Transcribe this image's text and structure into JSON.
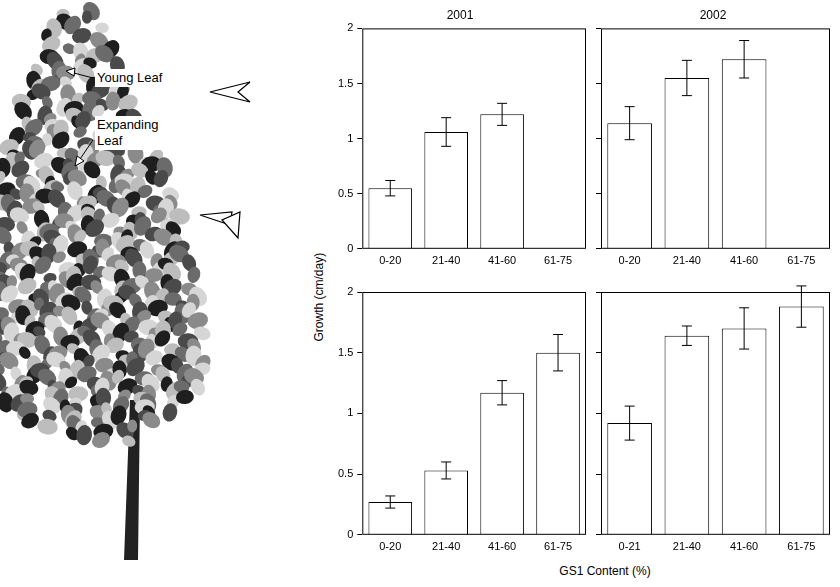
{
  "chart_data": [
    {
      "type": "bar",
      "title": "2001",
      "categories": [
        "0-20",
        "21-40",
        "41-60",
        "61-75"
      ],
      "values": [
        0.55,
        1.06,
        1.22,
        null
      ],
      "errors": [
        0.07,
        0.13,
        0.1,
        null
      ],
      "color": "#ffffff",
      "ylim": [
        0,
        2
      ],
      "yticks": [
        0,
        0.5,
        1,
        1.5,
        2
      ],
      "grid": false
    },
    {
      "type": "bar",
      "title": "2002",
      "categories": [
        "0-20",
        "21-40",
        "41-60",
        "61-75"
      ],
      "values": [
        1.14,
        1.55,
        1.72,
        null
      ],
      "errors": [
        0.15,
        0.16,
        0.17,
        null
      ],
      "color": "#ffffff",
      "ylim": [
        0,
        2
      ],
      "yticks": [
        0,
        0.5,
        1,
        1.5,
        2
      ],
      "grid": false,
      "tick_labels": "x"
    },
    {
      "type": "bar",
      "categories": [
        "0-20",
        "21-40",
        "41-60",
        "61-75"
      ],
      "values": [
        0.27,
        0.53,
        1.17,
        1.5
      ],
      "errors": [
        0.05,
        0.07,
        0.1,
        0.15
      ],
      "color": "#ffffff",
      "ylim": [
        0,
        2
      ],
      "yticks": [
        0,
        0.5,
        1,
        1.5,
        2
      ],
      "grid": false
    },
    {
      "type": "bar",
      "categories": [
        "0-21",
        "21-40",
        "41-60",
        "61-75"
      ],
      "values": [
        0.92,
        1.64,
        1.7,
        1.88
      ],
      "errors": [
        0.14,
        0.08,
        0.17,
        0.17
      ],
      "color": "#ffffff",
      "ylim": [
        0,
        2
      ],
      "yticks": [
        0,
        0.5,
        1,
        1.5,
        2
      ],
      "grid": false,
      "tick_labels": "x"
    }
  ],
  "ylabel": "Growth (cm/day)",
  "xlabel": "GS1 Content (%)",
  "annotations": [
    "Young Leaf",
    "Expanding Leaf"
  ]
}
